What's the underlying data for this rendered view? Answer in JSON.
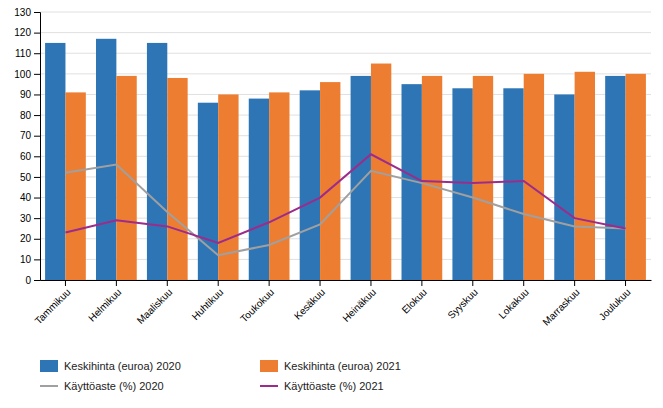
{
  "chart_data": {
    "type": "bar",
    "categories": [
      "Tammikuu",
      "Helmikuu",
      "Maaliskuu",
      "Huhtikuu",
      "Toukokuu",
      "Kesäkuu",
      "Heinäkuu",
      "Elokuu",
      "Syyskuu",
      "Lokakuu",
      "Marraskuu",
      "Joulukuu"
    ],
    "series": [
      {
        "name": "Keskihinta (euroa) 2020",
        "type": "bar",
        "color": "#2E75B6",
        "values": [
          115,
          117,
          115,
          86,
          88,
          92,
          99,
          95,
          93,
          93,
          90,
          99
        ]
      },
      {
        "name": "Keskihinta (euroa) 2021",
        "type": "bar",
        "color": "#ED7D31",
        "values": [
          91,
          99,
          98,
          90,
          91,
          96,
          105,
          99,
          99,
          100,
          101,
          100
        ]
      },
      {
        "name": "Käyttöaste (%) 2020",
        "type": "line",
        "color": "#A0A0A0",
        "values": [
          52,
          56,
          33,
          12,
          17,
          27,
          53,
          47,
          40,
          32,
          26,
          25
        ]
      },
      {
        "name": "Käyttöaste (%) 2021",
        "type": "line",
        "color": "#9B2C8B",
        "values": [
          23,
          29,
          26,
          18,
          28,
          40,
          61,
          48,
          47,
          48,
          30,
          25
        ]
      }
    ],
    "ylim": [
      0,
      130
    ],
    "yticks": [
      0,
      10,
      20,
      30,
      40,
      50,
      60,
      70,
      80,
      90,
      100,
      110,
      120,
      130
    ],
    "grid": true,
    "legend": "bottom"
  }
}
